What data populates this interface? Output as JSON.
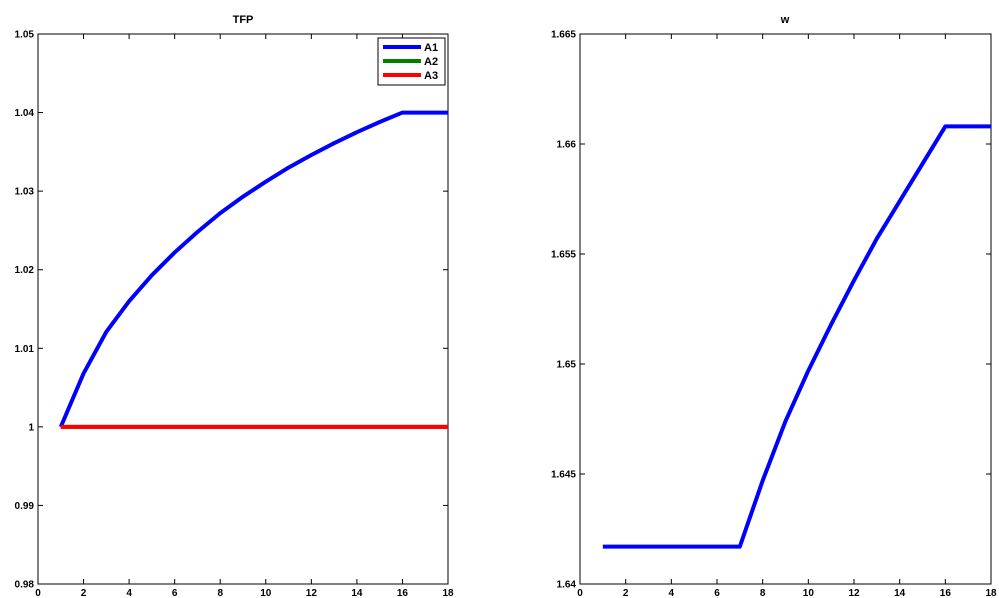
{
  "chart_data": [
    {
      "type": "line",
      "title": "TFP",
      "xlabel": "",
      "ylabel": "",
      "xlim": [
        0,
        18
      ],
      "ylim": [
        0.98,
        1.05
      ],
      "xticks": [
        0,
        2,
        4,
        6,
        8,
        10,
        12,
        14,
        16,
        18
      ],
      "yticks": [
        0.98,
        0.99,
        1,
        1.01,
        1.02,
        1.03,
        1.04,
        1.05
      ],
      "ytick_labels": [
        "0.98",
        "0.99",
        "1",
        "1.01",
        "1.02",
        "1.03",
        "1.04",
        "1.05"
      ],
      "grid": false,
      "legend_position": "top-right",
      "x": [
        1,
        2,
        3,
        4,
        5,
        6,
        7,
        8,
        9,
        10,
        11,
        12,
        13,
        14,
        15,
        16,
        17,
        18
      ],
      "series": [
        {
          "name": "A1",
          "color": "#0000ff",
          "values": [
            1.0,
            1.0068,
            1.0121,
            1.016,
            1.0193,
            1.0222,
            1.0248,
            1.0272,
            1.0293,
            1.0312,
            1.033,
            1.0346,
            1.0361,
            1.0375,
            1.0388,
            1.04,
            1.04,
            1.04
          ]
        },
        {
          "name": "A2",
          "color": "#008000",
          "values": [
            1,
            1,
            1,
            1,
            1,
            1,
            1,
            1,
            1,
            1,
            1,
            1,
            1,
            1,
            1,
            1,
            1,
            1
          ]
        },
        {
          "name": "A3",
          "color": "#ff0000",
          "values": [
            1,
            1,
            1,
            1,
            1,
            1,
            1,
            1,
            1,
            1,
            1,
            1,
            1,
            1,
            1,
            1,
            1,
            1
          ]
        }
      ]
    },
    {
      "type": "line",
      "title": "w",
      "xlabel": "",
      "ylabel": "",
      "xlim": [
        0,
        18
      ],
      "ylim": [
        1.64,
        1.665
      ],
      "xticks": [
        0,
        2,
        4,
        6,
        8,
        10,
        12,
        14,
        16,
        18
      ],
      "yticks": [
        1.64,
        1.645,
        1.65,
        1.655,
        1.66,
        1.665
      ],
      "ytick_labels": [
        "1.64",
        "1.645",
        "1.65",
        "1.655",
        "1.66",
        "1.665"
      ],
      "grid": false,
      "x": [
        1,
        2,
        3,
        4,
        5,
        6,
        7,
        8,
        9,
        10,
        11,
        12,
        13,
        14,
        15,
        16,
        17,
        18
      ],
      "series": [
        {
          "color": "#0000ff",
          "values": [
            1.6417,
            1.6417,
            1.6417,
            1.6417,
            1.6417,
            1.6417,
            1.6417,
            1.6447,
            1.6474,
            1.6497,
            1.6518,
            1.6538,
            1.6557,
            1.6574,
            1.6591,
            1.6608,
            1.6608,
            1.6608
          ]
        }
      ]
    }
  ]
}
